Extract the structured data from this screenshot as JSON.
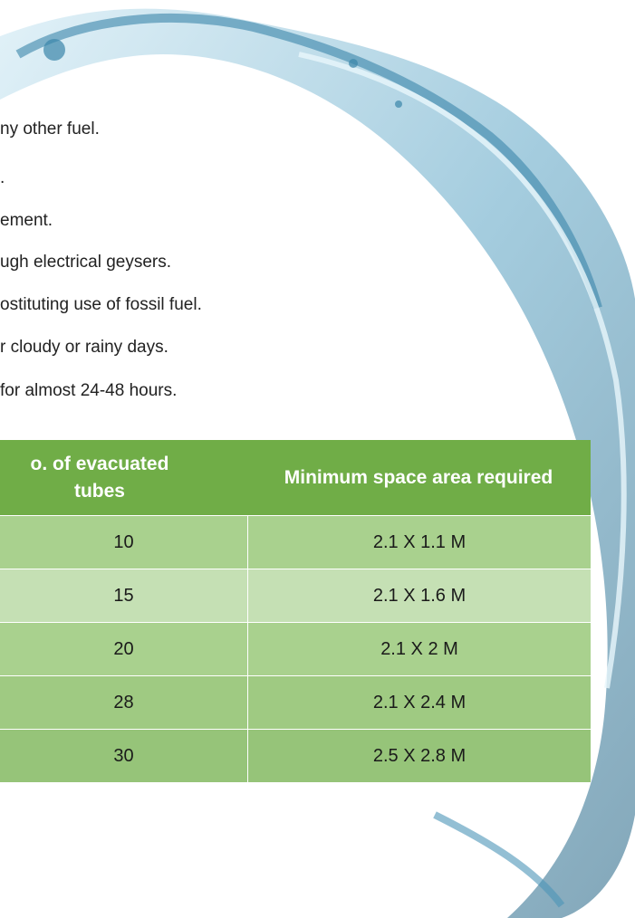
{
  "lines": [
    "ny other fuel.",
    ".",
    "ement.",
    "ugh electrical geysers.",
    "ostituting use of fossil fuel.",
    "r cloudy or rainy days.",
    "for almost 24-48 hours."
  ],
  "table": {
    "header": [
      "o. of evacuated tubes",
      "Minimum space area required"
    ],
    "rows": [
      [
        "10",
        "2.1 X 1.1 M"
      ],
      [
        "15",
        "2.1 X 1.6 M"
      ],
      [
        "20",
        "2.1 X 2 M"
      ],
      [
        "28",
        "2.1 X 2.4 M"
      ],
      [
        "30",
        "2.5 X 2.8 M"
      ]
    ]
  }
}
